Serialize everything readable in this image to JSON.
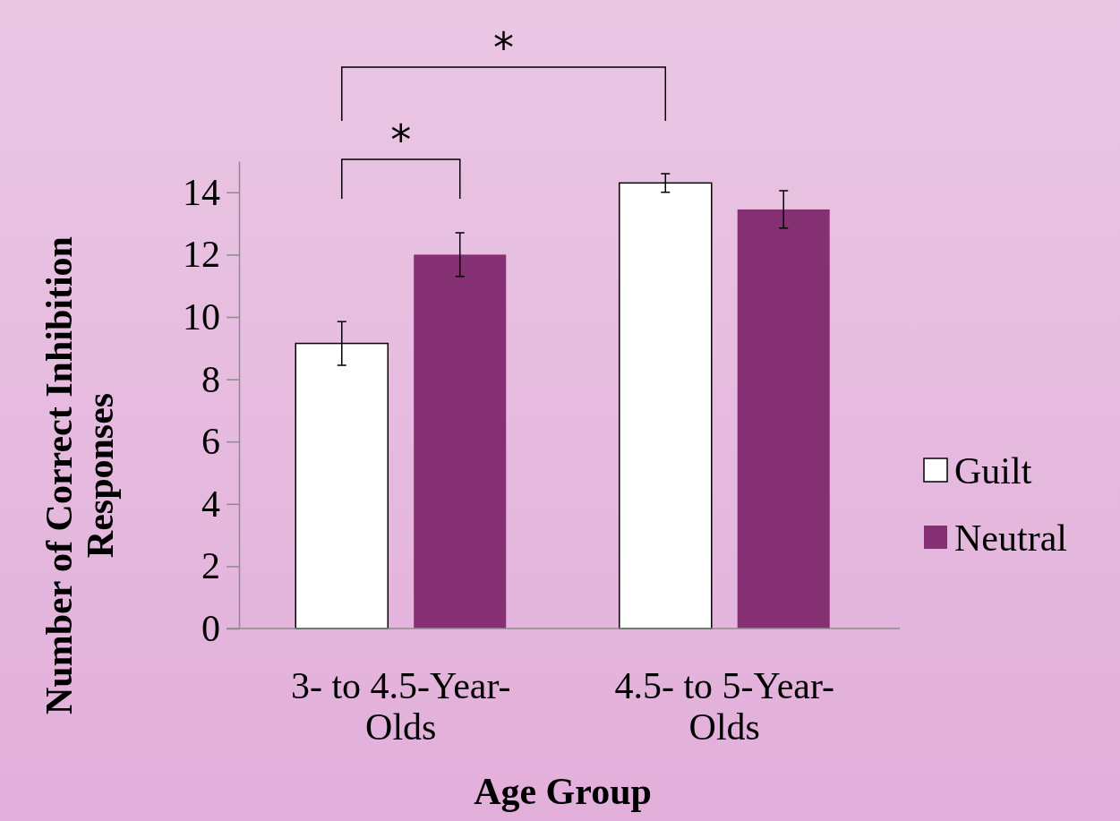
{
  "chart_data": {
    "type": "bar",
    "xlabel": "Age Group",
    "ylabel": "Number of Correct Inhibition Responses",
    "categories": [
      "3- to 4.5-Year-Olds",
      "4.5- to 5-Year-Olds"
    ],
    "series": [
      {
        "name": "Guilt",
        "color": "#ffffff",
        "values": [
          9.15,
          14.3
        ],
        "errors": [
          0.7,
          0.3
        ]
      },
      {
        "name": "Neutral",
        "color": "#863074",
        "values": [
          12.0,
          13.45
        ],
        "errors": [
          0.7,
          0.6
        ]
      }
    ],
    "ylim": [
      0,
      15
    ],
    "yticks": [
      0,
      2,
      4,
      6,
      8,
      10,
      12,
      14
    ],
    "grid": false,
    "legend": "right",
    "annotations": [
      "*",
      "*"
    ]
  }
}
